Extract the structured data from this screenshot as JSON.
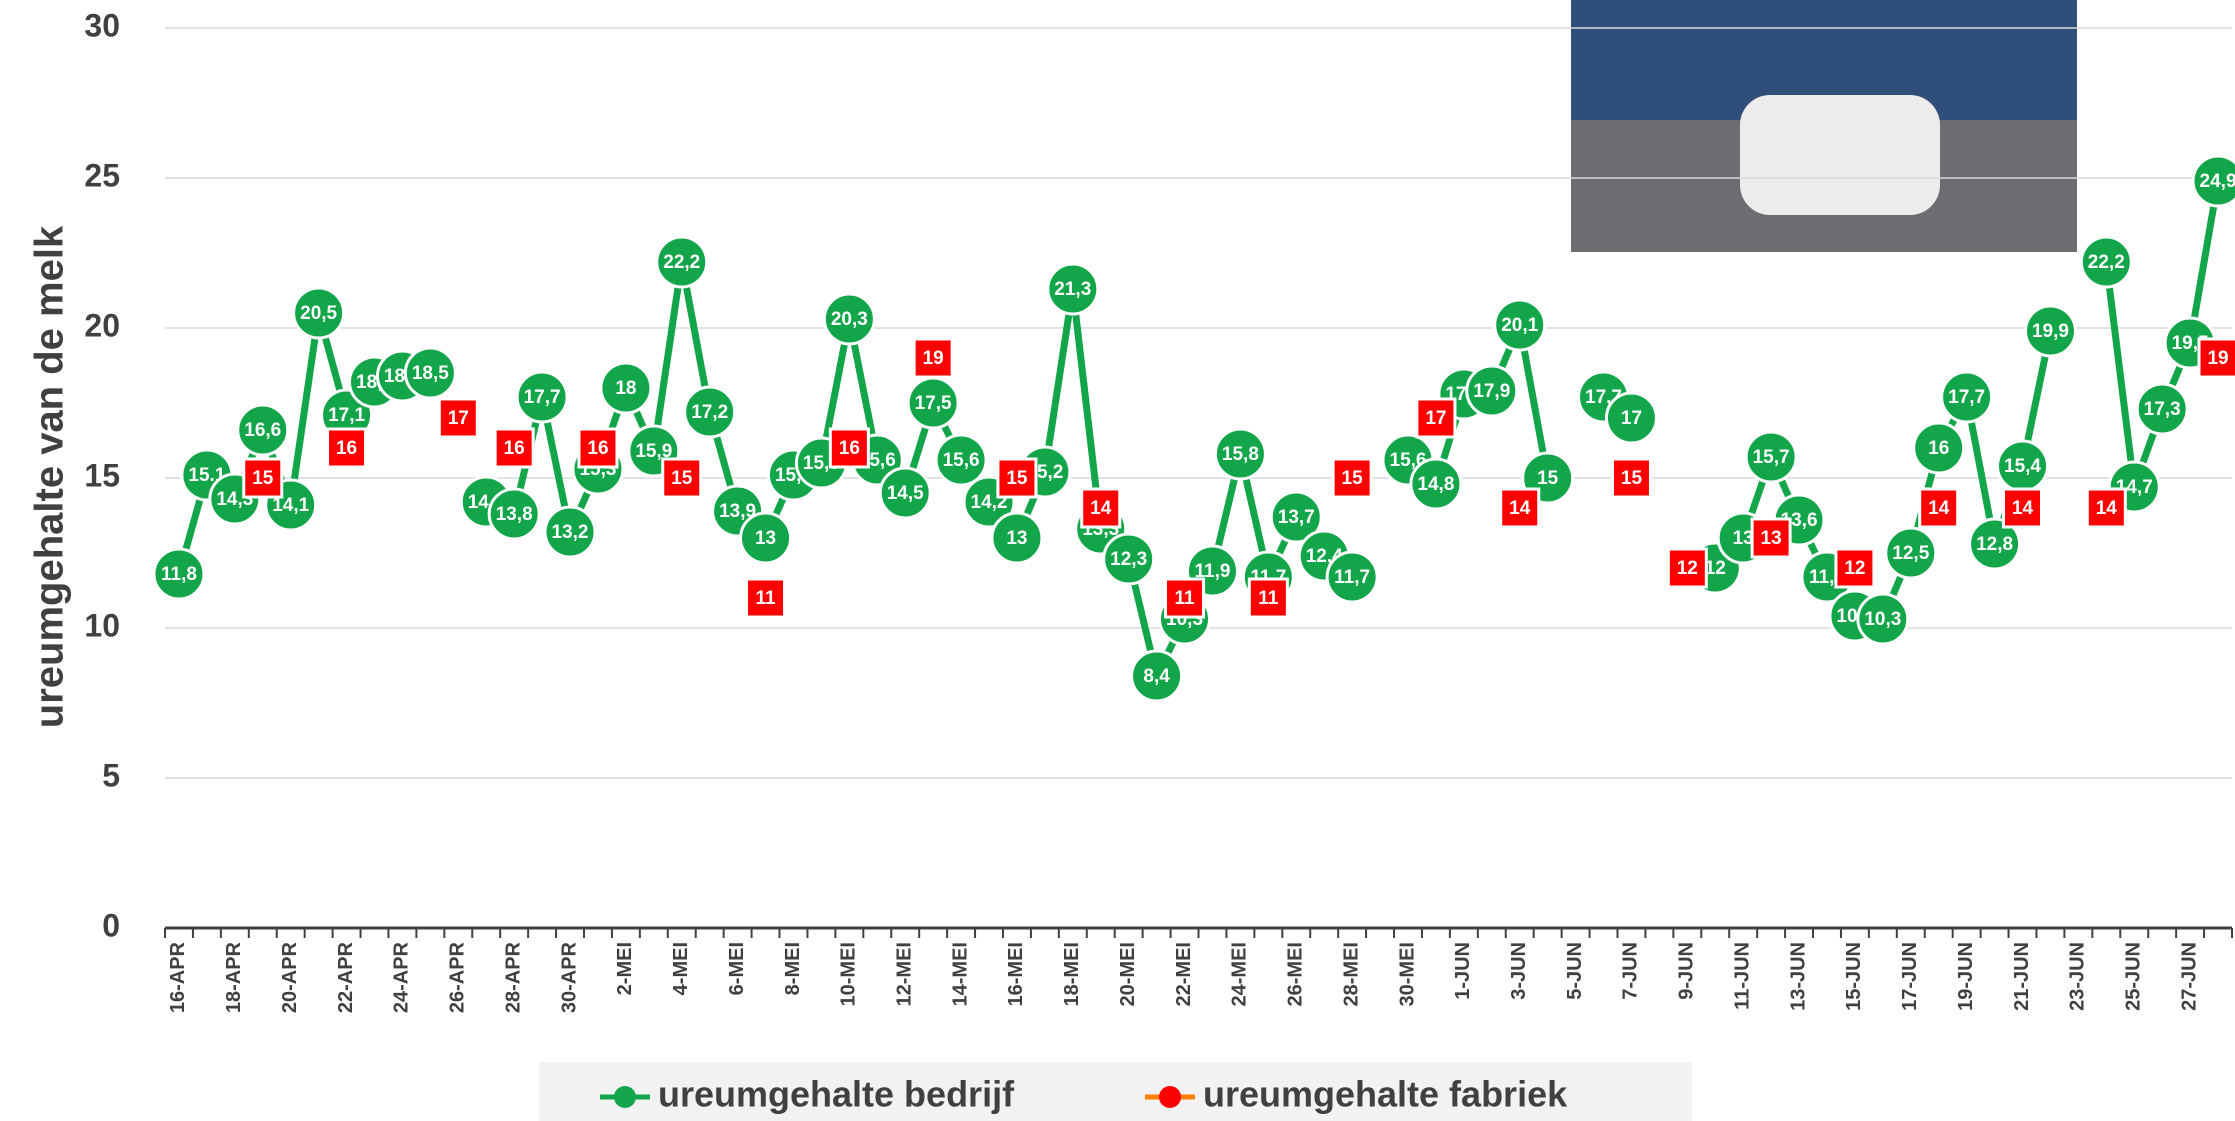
{
  "chart_data": {
    "type": "line",
    "y_label": "ureumgehalte van de melk",
    "categories": [
      "16-APR",
      null,
      "18-APR",
      null,
      "20-APR",
      null,
      "22-APR",
      null,
      "24-APR",
      null,
      "26-APR",
      null,
      "28-APR",
      null,
      "30-APR",
      null,
      "2-MEI",
      null,
      "4-MEI",
      null,
      "6-MEI",
      null,
      "8-MEI",
      null,
      "10-MEI",
      null,
      "12-MEI",
      null,
      "14-MEI",
      null,
      "16-MEI",
      null,
      "18-MEI",
      null,
      "20-MEI",
      null,
      "22-MEI",
      null,
      "24-MEI",
      null,
      "26-MEI",
      null,
      "28-MEI",
      null,
      "30-MEI",
      null,
      "1-JUN",
      null,
      "3-JUN",
      null,
      "5-JUN",
      null,
      "7-JUN",
      null,
      "9-JUN",
      null,
      "11-JUN",
      null,
      "13-JUN",
      null,
      "15-JUN",
      null,
      "17-JUN",
      null,
      "19-JUN",
      null,
      "21-JUN",
      null,
      "23-JUN",
      null,
      "25-JUN",
      null,
      "27-JUN",
      null
    ],
    "series": [
      {
        "name": "ureumgehalte bedrijf",
        "color": "#12a54a",
        "line": true,
        "values": [
          11.8,
          15.1,
          14.3,
          16.6,
          14.1,
          20.5,
          17.1,
          18.2,
          18.4,
          18.5,
          null,
          14.2,
          13.8,
          17.7,
          13.2,
          15.3,
          18,
          15.9,
          22.2,
          17.2,
          13.9,
          13,
          15.1,
          15.5,
          20.3,
          15.6,
          14.5,
          17.5,
          15.6,
          14.2,
          13,
          15.2,
          21.3,
          13.3,
          12.3,
          8.4,
          10.3,
          11.9,
          15.8,
          11.7,
          13.7,
          12.4,
          11.7,
          null,
          15.6,
          14.8,
          17.8,
          17.9,
          20.1,
          15,
          null,
          17.7,
          17,
          null,
          null,
          12,
          13,
          15.7,
          13.6,
          11.7,
          10.4,
          10.3,
          12.5,
          16,
          17.7,
          12.8,
          15.4,
          19.9,
          null,
          22.2,
          14.7,
          17.3,
          19.5,
          24.9
        ],
        "value_labels": [
          "11,8",
          "15.1",
          "14,3",
          "16,6",
          "14,1",
          "20,5",
          "17,1",
          "18,2",
          "18,4",
          "18,5",
          null,
          "14,2",
          "13,8",
          "17,7",
          "13,2",
          "15,3",
          "18",
          "15,9",
          "22,2",
          "17,2",
          "13,9",
          "13",
          "15,1",
          "15,5",
          "20,3",
          "15,6",
          "14,5",
          "17,5",
          "15,6",
          "14,2",
          "13",
          "15,2",
          "21,3",
          "13,3",
          "12,3",
          "8,4",
          "10,3",
          "11,9",
          "15,8",
          "11,7",
          "13,7",
          "12,4",
          "11,7",
          null,
          "15,6",
          "14,8",
          "17,8",
          "17,9",
          "20,1",
          "15",
          null,
          "17,7",
          "17",
          null,
          null,
          "12",
          "13",
          "15,7",
          "13,6",
          "11,7",
          "10,4",
          "10,3",
          "12,5",
          "16",
          "17,7",
          "12,8",
          "15,4",
          "19,9",
          null,
          "22,2",
          "14,7",
          "17,3",
          "19,5",
          "24,9"
        ]
      },
      {
        "name": "ureumgehalte fabriek",
        "color": "#ff0000",
        "line": false,
        "values": [
          null,
          null,
          null,
          15,
          null,
          null,
          16,
          null,
          null,
          null,
          17,
          null,
          16,
          null,
          null,
          16,
          null,
          null,
          15,
          null,
          null,
          11,
          null,
          null,
          16,
          null,
          null,
          19,
          null,
          null,
          15,
          null,
          null,
          14,
          null,
          null,
          11,
          null,
          null,
          11,
          null,
          null,
          15,
          null,
          null,
          17,
          null,
          null,
          14,
          null,
          null,
          null,
          15,
          null,
          12,
          null,
          null,
          13,
          null,
          null,
          12,
          null,
          null,
          14,
          null,
          null,
          14,
          null,
          null,
          14,
          null,
          null,
          null,
          19
        ]
      }
    ],
    "ylim": [
      0,
      30
    ],
    "yticks": [
      0,
      5,
      10,
      15,
      20,
      25,
      30
    ],
    "grid": true
  }
}
